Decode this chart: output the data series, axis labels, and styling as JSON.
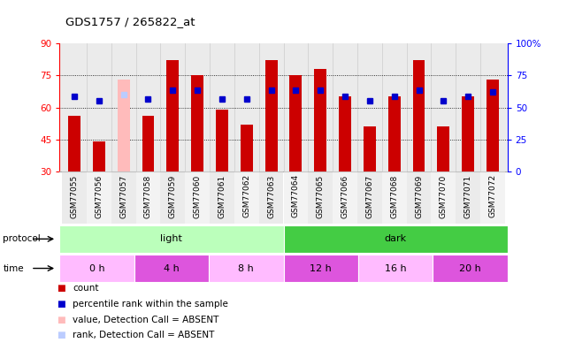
{
  "title": "GDS1757 / 265822_at",
  "samples": [
    "GSM77055",
    "GSM77056",
    "GSM77057",
    "GSM77058",
    "GSM77059",
    "GSM77060",
    "GSM77061",
    "GSM77062",
    "GSM77063",
    "GSM77064",
    "GSM77065",
    "GSM77066",
    "GSM77067",
    "GSM77068",
    "GSM77069",
    "GSM77070",
    "GSM77071",
    "GSM77072"
  ],
  "count_values": [
    56,
    44,
    73,
    56,
    82,
    75,
    59,
    52,
    82,
    75,
    78,
    65,
    51,
    65,
    82,
    51,
    65,
    73
  ],
  "rank_values": [
    65,
    63,
    66,
    64,
    68,
    68,
    64,
    64,
    68,
    68,
    68,
    65,
    63,
    65,
    68,
    63,
    65,
    67
  ],
  "absent_sample_idx": 2,
  "absent_count": 73,
  "absent_rank": 66,
  "ylim_left": [
    30,
    90
  ],
  "ylim_right": [
    0,
    100
  ],
  "yticks_left": [
    30,
    45,
    60,
    75,
    90
  ],
  "yticks_right": [
    0,
    25,
    50,
    75,
    100
  ],
  "ytick_labels_right": [
    "0",
    "25",
    "50",
    "75",
    "100%"
  ],
  "protocol_groups": [
    {
      "label": "light",
      "start": 0,
      "end": 9,
      "color": "#bbffbb"
    },
    {
      "label": "dark",
      "start": 9,
      "end": 18,
      "color": "#44cc44"
    }
  ],
  "time_groups": [
    {
      "label": "0 h",
      "start": 0,
      "end": 3,
      "color": "#ffbbff"
    },
    {
      "label": "4 h",
      "start": 3,
      "end": 6,
      "color": "#dd55dd"
    },
    {
      "label": "8 h",
      "start": 6,
      "end": 9,
      "color": "#ffbbff"
    },
    {
      "label": "12 h",
      "start": 9,
      "end": 12,
      "color": "#dd55dd"
    },
    {
      "label": "16 h",
      "start": 12,
      "end": 15,
      "color": "#ffbbff"
    },
    {
      "label": "20 h",
      "start": 15,
      "end": 18,
      "color": "#dd55dd"
    }
  ],
  "bar_color": "#cc0000",
  "absent_bar_color": "#ffbbbb",
  "rank_color": "#0000cc",
  "absent_rank_color": "#bbccff",
  "bar_width": 0.5,
  "rank_marker_size": 4,
  "bg_color": "#ffffff",
  "axis_area_bg": "#ebebeb",
  "legend_items": [
    {
      "label": "count",
      "color": "#cc0000"
    },
    {
      "label": "percentile rank within the sample",
      "color": "#0000cc"
    },
    {
      "label": "value, Detection Call = ABSENT",
      "color": "#ffbbbb"
    },
    {
      "label": "rank, Detection Call = ABSENT",
      "color": "#bbccff"
    }
  ]
}
